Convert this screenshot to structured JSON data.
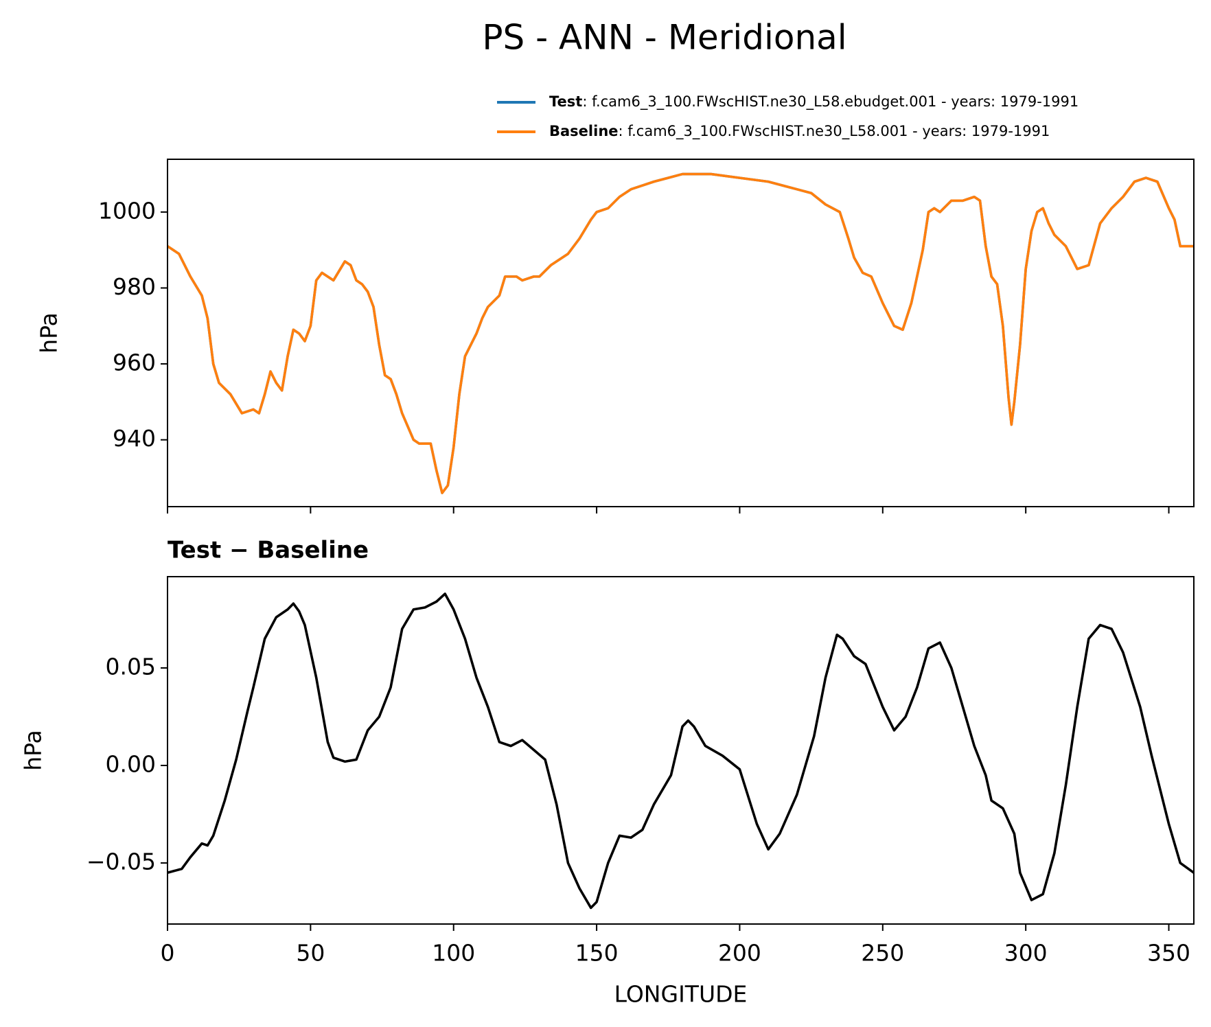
{
  "chart_data": [
    {
      "type": "line",
      "title": "PS - ANN - Meridional",
      "ylabel": "hPa",
      "x": [
        0,
        4,
        8,
        12,
        14,
        16,
        18,
        22,
        26,
        30,
        32,
        34,
        36,
        38,
        40,
        42,
        44,
        46,
        48,
        50,
        52,
        54,
        58,
        62,
        64,
        66,
        68,
        70,
        72,
        74,
        76,
        78,
        80,
        82,
        86,
        88,
        92,
        94,
        96,
        98,
        100,
        102,
        104,
        108,
        110,
        112,
        116,
        118,
        122,
        124,
        128,
        130,
        134,
        136,
        138,
        140,
        144,
        148,
        150,
        154,
        158,
        162,
        166,
        170,
        175,
        180,
        190,
        200,
        210,
        220,
        225,
        230,
        235,
        238,
        240,
        243,
        246,
        250,
        254,
        257,
        260,
        264,
        266,
        268,
        270,
        274,
        278,
        282,
        284,
        286,
        288,
        290,
        292,
        294,
        295,
        296,
        298,
        300,
        302,
        304,
        306,
        308,
        310,
        314,
        318,
        322,
        326,
        330,
        334,
        338,
        342,
        346,
        350,
        352,
        354,
        358.75
      ],
      "series": [
        {
          "name": "Test",
          "case": ": f.cam6_3_100.FWscHIST.ne30_L58.ebudget.001 - years: 1979-1991",
          "color": "#1f77b4",
          "values": [
            991,
            989,
            983,
            978,
            972,
            960,
            955,
            952,
            947,
            948,
            947,
            952,
            958,
            955,
            953,
            962,
            969,
            968,
            966,
            970,
            982,
            984,
            982,
            987,
            986,
            982,
            981,
            979,
            975,
            965,
            957,
            956,
            952,
            947,
            940,
            939,
            939,
            932,
            926,
            928,
            938,
            952,
            962,
            968,
            972,
            975,
            978,
            983,
            983,
            982,
            983,
            983,
            986,
            987,
            988,
            989,
            993,
            998,
            1000,
            1001,
            1004,
            1006,
            1007,
            1008,
            1009,
            1010,
            1010,
            1009,
            1008,
            1006,
            1005,
            1002,
            1000,
            993,
            988,
            984,
            983,
            976,
            970,
            969,
            976,
            990,
            1000,
            1001,
            1000,
            1003,
            1003,
            1004,
            1003,
            991,
            983,
            981,
            970,
            951,
            944,
            950,
            965,
            985,
            995,
            1000,
            1001,
            997,
            994,
            991,
            985,
            986,
            997,
            1001,
            1004,
            1008,
            1009,
            1008,
            1001,
            998,
            991,
            991
          ]
        },
        {
          "name": "Baseline",
          "case": ": f.cam6_3_100.FWscHIST.ne30_L58.001 - years: 1979-1991",
          "color": "#ff7f0e",
          "values": [
            991,
            989,
            983,
            978,
            972,
            960,
            955,
            952,
            947,
            948,
            947,
            952,
            958,
            955,
            953,
            962,
            969,
            968,
            966,
            970,
            982,
            984,
            982,
            987,
            986,
            982,
            981,
            979,
            975,
            965,
            957,
            956,
            952,
            947,
            940,
            939,
            939,
            932,
            926,
            928,
            938,
            952,
            962,
            968,
            972,
            975,
            978,
            983,
            983,
            982,
            983,
            983,
            986,
            987,
            988,
            989,
            993,
            998,
            1000,
            1001,
            1004,
            1006,
            1007,
            1008,
            1009,
            1010,
            1010,
            1009,
            1008,
            1006,
            1005,
            1002,
            1000,
            993,
            988,
            984,
            983,
            976,
            970,
            969,
            976,
            990,
            1000,
            1001,
            1000,
            1003,
            1003,
            1004,
            1003,
            991,
            983,
            981,
            970,
            951,
            944,
            950,
            965,
            985,
            995,
            1000,
            1001,
            997,
            994,
            991,
            985,
            986,
            997,
            1001,
            1004,
            1008,
            1009,
            1008,
            1001,
            998,
            991,
            991
          ]
        }
      ],
      "xlim": [
        0,
        358.75
      ],
      "xticks": [
        0,
        50,
        100,
        150,
        200,
        250,
        300,
        350
      ],
      "xtick_labels": false,
      "ylim": [
        922.4,
        1013.9
      ],
      "yticks": [
        940,
        960,
        980,
        1000
      ]
    },
    {
      "type": "line",
      "title": "Test − Baseline",
      "ylabel": "hPa",
      "xlabel": "LONGITUDE",
      "x": [
        0,
        5,
        8,
        12,
        14,
        16,
        20,
        24,
        28,
        30,
        34,
        38,
        42,
        44,
        46,
        48,
        52,
        56,
        58,
        62,
        66,
        70,
        74,
        78,
        82,
        86,
        90,
        94,
        97,
        100,
        104,
        108,
        112,
        116,
        120,
        124,
        128,
        132,
        136,
        140,
        144,
        148,
        150,
        154,
        158,
        162,
        166,
        170,
        176,
        180,
        182,
        184,
        188,
        194,
        200,
        206,
        210,
        214,
        220,
        226,
        230,
        234,
        236,
        240,
        244,
        250,
        254,
        258,
        262,
        266,
        270,
        274,
        278,
        282,
        286,
        288,
        292,
        296,
        298,
        302,
        306,
        310,
        314,
        318,
        322,
        326,
        330,
        334,
        340,
        344,
        350,
        354,
        358.75
      ],
      "series": [
        {
          "name": "Test − Baseline",
          "color": "#000000",
          "values": [
            -0.055,
            -0.053,
            -0.047,
            -0.04,
            -0.041,
            -0.036,
            -0.018,
            0.003,
            0.028,
            0.04,
            0.065,
            0.076,
            0.08,
            0.083,
            0.079,
            0.072,
            0.045,
            0.012,
            0.004,
            0.002,
            0.003,
            0.018,
            0.025,
            0.04,
            0.07,
            0.08,
            0.081,
            0.084,
            0.088,
            0.08,
            0.065,
            0.045,
            0.03,
            0.012,
            0.01,
            0.013,
            0.008,
            0.003,
            -0.02,
            -0.05,
            -0.063,
            -0.073,
            -0.07,
            -0.05,
            -0.036,
            -0.037,
            -0.033,
            -0.02,
            -0.005,
            0.02,
            0.023,
            0.02,
            0.01,
            0.005,
            -0.002,
            -0.03,
            -0.043,
            -0.035,
            -0.015,
            0.015,
            0.045,
            0.067,
            0.065,
            0.056,
            0.052,
            0.03,
            0.018,
            0.025,
            0.04,
            0.06,
            0.063,
            0.05,
            0.03,
            0.01,
            -0.005,
            -0.018,
            -0.022,
            -0.035,
            -0.055,
            -0.069,
            -0.066,
            -0.045,
            -0.01,
            0.03,
            0.065,
            0.072,
            0.07,
            0.058,
            0.03,
            0.005,
            -0.03,
            -0.05,
            -0.055
          ]
        }
      ],
      "xlim": [
        0,
        358.75
      ],
      "xticks": [
        0,
        50,
        100,
        150,
        200,
        250,
        300,
        350
      ],
      "xtick_labels": true,
      "ylim": [
        -0.0813,
        0.0968
      ],
      "yticks": [
        {
          "value": -0.05,
          "label": "−0.05"
        },
        {
          "value": 0,
          "label": "0.00"
        },
        0.05
      ]
    }
  ]
}
